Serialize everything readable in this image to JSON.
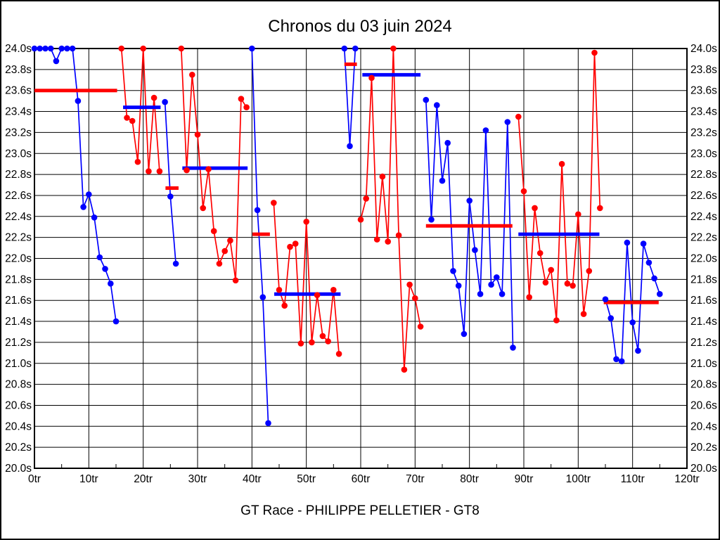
{
  "chart_data": {
    "type": "line",
    "title": "Chronos du 03 juin 2024",
    "caption": "GT Race - PHILIPPE PELLETIER - GT8",
    "x_unit_suffix": "tr",
    "y_unit_suffix": "s",
    "xlim": [
      0,
      120
    ],
    "ylim": [
      20.0,
      24.0
    ],
    "x_tick_step": 10,
    "y_tick_step": 0.2,
    "x_minor_tick_step": 5,
    "grid": true,
    "colors": {
      "blue_series": "#0000ff",
      "red_series": "#ff0000"
    },
    "series": [
      {
        "name": "driver-blue",
        "color": "#0000ff",
        "stints": [
          [
            [
              0,
              24.0
            ],
            [
              1,
              24.0
            ],
            [
              2,
              24.0
            ],
            [
              3,
              24.0
            ],
            [
              4,
              23.88
            ],
            [
              5,
              24.0
            ],
            [
              6,
              24.0
            ],
            [
              7,
              24.0
            ],
            [
              8,
              23.5
            ],
            [
              9,
              22.49
            ],
            [
              10,
              22.61
            ],
            [
              11,
              22.39
            ],
            [
              12,
              22.01
            ],
            [
              13,
              21.9
            ],
            [
              14,
              21.76
            ],
            [
              15,
              21.4
            ]
          ],
          [
            [
              24,
              23.49
            ],
            [
              25,
              22.59
            ],
            [
              26,
              21.95
            ]
          ],
          [
            [
              40,
              24.0
            ],
            [
              41,
              22.46
            ],
            [
              42,
              21.63
            ],
            [
              43,
              20.43
            ]
          ],
          [
            [
              57,
              24.0
            ],
            [
              58,
              23.07
            ],
            [
              59,
              24.0
            ]
          ],
          [
            [
              72,
              23.51
            ],
            [
              73,
              22.37
            ],
            [
              74,
              23.46
            ],
            [
              75,
              22.74
            ],
            [
              76,
              23.1
            ],
            [
              77,
              21.88
            ],
            [
              78,
              21.74
            ],
            [
              79,
              21.28
            ],
            [
              80,
              22.55
            ],
            [
              81,
              22.08
            ],
            [
              82,
              21.66
            ],
            [
              83,
              23.22
            ],
            [
              84,
              21.75
            ],
            [
              85,
              21.82
            ],
            [
              86,
              21.66
            ],
            [
              87,
              23.3
            ],
            [
              88,
              21.15
            ]
          ],
          [
            [
              105,
              21.61
            ],
            [
              106,
              21.43
            ],
            [
              107,
              21.04
            ],
            [
              108,
              21.02
            ],
            [
              109,
              22.15
            ],
            [
              110,
              21.39
            ],
            [
              111,
              21.12
            ],
            [
              112,
              22.14
            ],
            [
              113,
              21.96
            ],
            [
              114,
              21.81
            ],
            [
              115,
              21.66
            ]
          ]
        ]
      },
      {
        "name": "driver-red",
        "color": "#ff0000",
        "stints": [
          [
            [
              16,
              24.0
            ],
            [
              17,
              23.34
            ],
            [
              18,
              23.31
            ],
            [
              19,
              22.92
            ],
            [
              20,
              24.0
            ],
            [
              21,
              22.83
            ],
            [
              22,
              23.53
            ],
            [
              23,
              22.83
            ]
          ],
          [
            [
              27,
              24.0
            ],
            [
              28,
              22.84
            ],
            [
              29,
              23.75
            ],
            [
              30,
              23.18
            ],
            [
              31,
              22.48
            ],
            [
              32,
              22.85
            ],
            [
              33,
              22.26
            ],
            [
              34,
              21.95
            ],
            [
              35,
              22.07
            ],
            [
              36,
              22.17
            ],
            [
              37,
              21.79
            ],
            [
              38,
              23.52
            ],
            [
              39,
              23.44
            ]
          ],
          [
            [
              44,
              22.53
            ],
            [
              45,
              21.7
            ],
            [
              46,
              21.55
            ],
            [
              47,
              22.11
            ],
            [
              48,
              22.14
            ],
            [
              49,
              21.19
            ],
            [
              50,
              22.35
            ],
            [
              51,
              21.2
            ],
            [
              52,
              21.65
            ],
            [
              53,
              21.26
            ],
            [
              54,
              21.21
            ],
            [
              55,
              21.7
            ],
            [
              56,
              21.09
            ]
          ],
          [
            [
              60,
              22.37
            ],
            [
              61,
              22.57
            ],
            [
              62,
              23.72
            ],
            [
              63,
              22.18
            ],
            [
              64,
              22.78
            ],
            [
              65,
              22.16
            ],
            [
              66,
              24.0
            ],
            [
              67,
              22.22
            ],
            [
              68,
              20.94
            ],
            [
              69,
              21.75
            ],
            [
              70,
              21.62
            ],
            [
              71,
              21.35
            ]
          ],
          [
            [
              89,
              23.35
            ],
            [
              90,
              22.64
            ],
            [
              91,
              21.63
            ],
            [
              92,
              22.48
            ],
            [
              93,
              22.05
            ],
            [
              94,
              21.77
            ],
            [
              95,
              21.89
            ],
            [
              96,
              21.41
            ],
            [
              97,
              22.9
            ],
            [
              98,
              21.76
            ],
            [
              99,
              21.74
            ],
            [
              100,
              22.42
            ],
            [
              101,
              21.47
            ],
            [
              102,
              21.88
            ],
            [
              103,
              23.96
            ],
            [
              104,
              22.48
            ]
          ]
        ]
      }
    ],
    "average_bars": [
      {
        "from": 0.0,
        "to": 15.2,
        "value": 23.6,
        "color": "#ff0000"
      },
      {
        "from": 16.3,
        "to": 23.2,
        "value": 23.44,
        "color": "#0000ff"
      },
      {
        "from": 24.1,
        "to": 26.5,
        "value": 22.67,
        "color": "#ff0000"
      },
      {
        "from": 27.2,
        "to": 39.2,
        "value": 22.86,
        "color": "#0000ff"
      },
      {
        "from": 40.1,
        "to": 43.3,
        "value": 22.23,
        "color": "#ff0000"
      },
      {
        "from": 44.1,
        "to": 56.3,
        "value": 21.66,
        "color": "#0000ff"
      },
      {
        "from": 57.0,
        "to": 59.3,
        "value": 23.85,
        "color": "#ff0000"
      },
      {
        "from": 60.3,
        "to": 71.0,
        "value": 23.75,
        "color": "#0000ff"
      },
      {
        "from": 72.0,
        "to": 87.9,
        "value": 22.31,
        "color": "#ff0000"
      },
      {
        "from": 89.0,
        "to": 103.9,
        "value": 22.23,
        "color": "#0000ff"
      },
      {
        "from": 104.7,
        "to": 114.8,
        "value": 21.58,
        "color": "#ff0000"
      }
    ]
  }
}
